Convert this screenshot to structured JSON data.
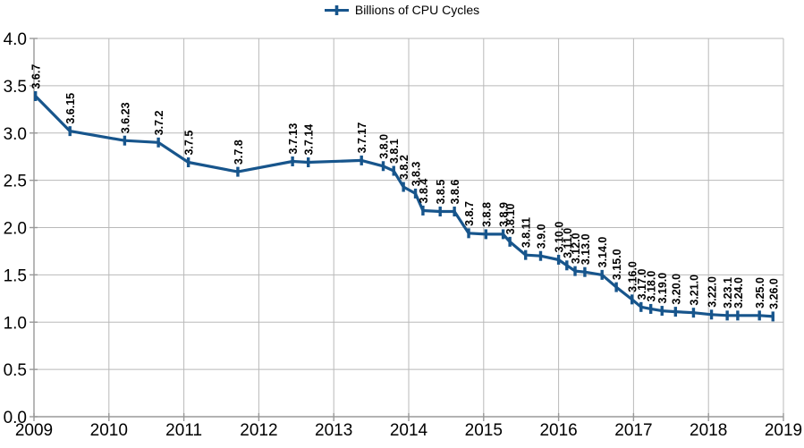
{
  "legend": {
    "label": "Billions of CPU Cycles"
  },
  "colors": {
    "series": "#17558c",
    "grid": "#b9b9b9",
    "axis": "#989898",
    "text": "#000000",
    "background": "#ffffff"
  },
  "chart_data": {
    "type": "line",
    "title": "",
    "legend_entries": [
      "Billions of CPU Cycles"
    ],
    "legend_position": "top-center",
    "grid": true,
    "marker": "vertical-tick",
    "x_axis": {
      "range": [
        2009,
        2019
      ],
      "tick_values": [
        2009,
        2010,
        2011,
        2012,
        2013,
        2014,
        2015,
        2016,
        2017,
        2018,
        2019
      ],
      "tick_labels": [
        "2009",
        "2010",
        "2011",
        "2012",
        "2013",
        "2014",
        "2015",
        "2016",
        "2017",
        "2018",
        "2019"
      ]
    },
    "y_axis": {
      "range": [
        0.0,
        4.0
      ],
      "tick_values": [
        0.0,
        0.5,
        1.0,
        1.5,
        2.0,
        2.5,
        3.0,
        3.5,
        4.0
      ],
      "tick_labels": [
        "0.0",
        "0.5",
        "1.0",
        "1.5",
        "2.0",
        "2.5",
        "3.0",
        "3.5",
        "4.0"
      ]
    },
    "series": [
      {
        "name": "Billions of CPU Cycles",
        "color": "#17558c",
        "points": [
          {
            "label": "3.6.7",
            "year": 2009.02,
            "value": 3.39
          },
          {
            "label": "3.6.15",
            "year": 2009.48,
            "value": 3.02
          },
          {
            "label": "3.6.23",
            "year": 2010.21,
            "value": 2.92
          },
          {
            "label": "3.7.2",
            "year": 2010.66,
            "value": 2.9
          },
          {
            "label": "3.7.5",
            "year": 2011.06,
            "value": 2.69
          },
          {
            "label": "3.7.8",
            "year": 2011.72,
            "value": 2.59
          },
          {
            "label": "3.7.13",
            "year": 2012.45,
            "value": 2.7
          },
          {
            "label": "3.7.14",
            "year": 2012.66,
            "value": 2.69
          },
          {
            "label": "3.7.17",
            "year": 2013.37,
            "value": 2.71
          },
          {
            "label": "3.8.0",
            "year": 2013.66,
            "value": 2.65
          },
          {
            "label": "3.8.1",
            "year": 2013.8,
            "value": 2.6
          },
          {
            "label": "3.8.2",
            "year": 2013.93,
            "value": 2.43
          },
          {
            "label": "3.8.3",
            "year": 2014.09,
            "value": 2.36
          },
          {
            "label": "3.8.4",
            "year": 2014.19,
            "value": 2.18
          },
          {
            "label": "3.8.5",
            "year": 2014.42,
            "value": 2.17
          },
          {
            "label": "3.8.6",
            "year": 2014.61,
            "value": 2.17
          },
          {
            "label": "3.8.7",
            "year": 2014.8,
            "value": 1.94
          },
          {
            "label": "3.8.8",
            "year": 2015.03,
            "value": 1.93
          },
          {
            "label": "3.8.9",
            "year": 2015.26,
            "value": 1.93
          },
          {
            "label": "3.8.10",
            "year": 2015.35,
            "value": 1.85
          },
          {
            "label": "3.8.11",
            "year": 2015.56,
            "value": 1.71
          },
          {
            "label": "3.9.0",
            "year": 2015.76,
            "value": 1.7
          },
          {
            "label": "3.10.0",
            "year": 2016.0,
            "value": 1.66
          },
          {
            "label": "3.11.0",
            "year": 2016.11,
            "value": 1.6
          },
          {
            "label": "3.12.0",
            "year": 2016.22,
            "value": 1.54
          },
          {
            "label": "3.13.0",
            "year": 2016.35,
            "value": 1.53
          },
          {
            "label": "3.14.0",
            "year": 2016.58,
            "value": 1.5
          },
          {
            "label": "3.15.0",
            "year": 2016.77,
            "value": 1.37
          },
          {
            "label": "3.16.0",
            "year": 2016.98,
            "value": 1.24
          },
          {
            "label": "3.17.0",
            "year": 2017.1,
            "value": 1.16
          },
          {
            "label": "3.18.0",
            "year": 2017.23,
            "value": 1.14
          },
          {
            "label": "3.19.0",
            "year": 2017.38,
            "value": 1.12
          },
          {
            "label": "3.20.0",
            "year": 2017.56,
            "value": 1.11
          },
          {
            "label": "3.21.0",
            "year": 2017.8,
            "value": 1.1
          },
          {
            "label": "3.22.0",
            "year": 2018.04,
            "value": 1.08
          },
          {
            "label": "3.23.1",
            "year": 2018.25,
            "value": 1.07
          },
          {
            "label": "3.24.0",
            "year": 2018.39,
            "value": 1.07
          },
          {
            "label": "3.25.0",
            "year": 2018.68,
            "value": 1.07
          },
          {
            "label": "3.26.0",
            "year": 2018.86,
            "value": 1.06
          }
        ]
      }
    ]
  }
}
